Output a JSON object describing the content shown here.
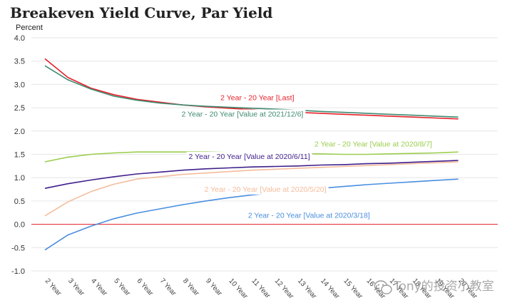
{
  "chart_data": {
    "type": "line",
    "title": "Breakeven Yield Curve, Par Yield",
    "ylabel": "Percent",
    "xlabel": "",
    "categories": [
      "2 Year",
      "3 Year",
      "4 Year",
      "5 Year",
      "6 Year",
      "7 Year",
      "8 Year",
      "9 Year",
      "10 Year",
      "11 Year",
      "12 Year",
      "13 Year",
      "14 Year",
      "15 Year",
      "16 Year",
      "17 Year",
      "18 Year",
      "19 Year",
      "20 Year"
    ],
    "x_tick_labels": [
      "2 Year",
      "3 Year",
      "4 Year",
      "5 Year",
      "6 Year",
      "7 Year",
      "8 Year",
      "9 Year",
      "10 Year",
      "11 Year",
      "12 Year",
      "13 Year",
      "14 Year",
      "15 Year",
      "16 Year",
      "17 Year",
      "18 Year",
      "19 Year",
      "20 Year"
    ],
    "ylim": [
      -1.0,
      4.0
    ],
    "y_ticks": [
      -1.0,
      -0.5,
      0.0,
      0.5,
      1.0,
      1.5,
      2.0,
      2.5,
      3.0,
      3.5,
      4.0
    ],
    "grid": "horizontal",
    "zero_line": true,
    "series": [
      {
        "name": "2 Year - 20 Year [Last]",
        "color": "#e8202a",
        "values": [
          3.55,
          3.15,
          2.92,
          2.78,
          2.68,
          2.62,
          2.56,
          2.52,
          2.49,
          2.46,
          2.43,
          2.4,
          2.38,
          2.36,
          2.34,
          2.32,
          2.3,
          2.28,
          2.26
        ],
        "label_pos": [
          9.25,
          2.66
        ]
      },
      {
        "name": "2 Year - 20 Year [Value at 2021/12/6]",
        "color": "#3f8a72",
        "values": [
          3.4,
          3.1,
          2.9,
          2.75,
          2.66,
          2.6,
          2.56,
          2.53,
          2.51,
          2.49,
          2.47,
          2.45,
          2.42,
          2.4,
          2.38,
          2.36,
          2.34,
          2.32,
          2.3
        ],
        "label_pos": [
          8.6,
          2.31
        ]
      },
      {
        "name": "2 Year - 20 Year [Value at 2020/8/7]",
        "color": "#9acd4c",
        "values": [
          1.34,
          1.44,
          1.5,
          1.53,
          1.55,
          1.55,
          1.55,
          1.55,
          1.54,
          1.53,
          1.52,
          1.51,
          1.51,
          1.5,
          1.5,
          1.51,
          1.52,
          1.53,
          1.55
        ],
        "label_pos": [
          14.3,
          1.67
        ]
      },
      {
        "name": "2 Year - 20 Year [Value at 2020/6/11]",
        "color": "#3f1f8c",
        "values": [
          0.77,
          0.87,
          0.95,
          1.02,
          1.08,
          1.12,
          1.16,
          1.19,
          1.21,
          1.23,
          1.24,
          1.25,
          1.27,
          1.28,
          1.3,
          1.31,
          1.33,
          1.35,
          1.37
        ],
        "label_pos": [
          8.9,
          1.4
        ]
      },
      {
        "name": "2 Year - 20 Year [Value at 2020/5/20]",
        "color": "#f4bc9c",
        "values": [
          0.18,
          0.48,
          0.7,
          0.86,
          0.97,
          1.02,
          1.07,
          1.1,
          1.13,
          1.16,
          1.18,
          1.2,
          1.22,
          1.24,
          1.26,
          1.28,
          1.3,
          1.32,
          1.34
        ],
        "label_pos": [
          9.6,
          0.7
        ]
      },
      {
        "name": "2 Year - 20 Year [Value at 2020/3/18]",
        "color": "#4a8ee0",
        "values": [
          -0.55,
          -0.23,
          -0.04,
          0.12,
          0.24,
          0.33,
          0.42,
          0.5,
          0.57,
          0.63,
          0.68,
          0.73,
          0.77,
          0.81,
          0.85,
          0.88,
          0.91,
          0.94,
          0.97
        ],
        "label_pos": [
          11.5,
          0.14
        ]
      }
    ]
  },
  "watermark": "Tony的投资小教室"
}
